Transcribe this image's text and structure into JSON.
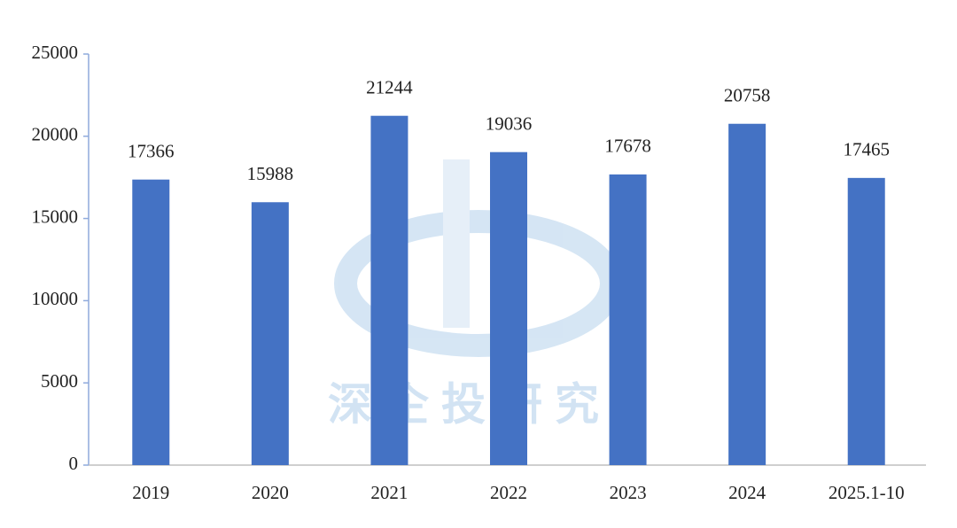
{
  "chart_data": {
    "type": "bar",
    "watermark": "深企投研究",
    "categories": [
      "2019",
      "2020",
      "2021",
      "2022",
      "2023",
      "2024",
      "2025.1-10"
    ],
    "values": [
      17366,
      15988,
      21244,
      19036,
      17678,
      20758,
      17465
    ],
    "color": "#4472c4",
    "ylim": [
      0,
      25000
    ],
    "yticks": [
      0,
      5000,
      10000,
      15000,
      20000,
      25000
    ],
    "grid": false
  }
}
